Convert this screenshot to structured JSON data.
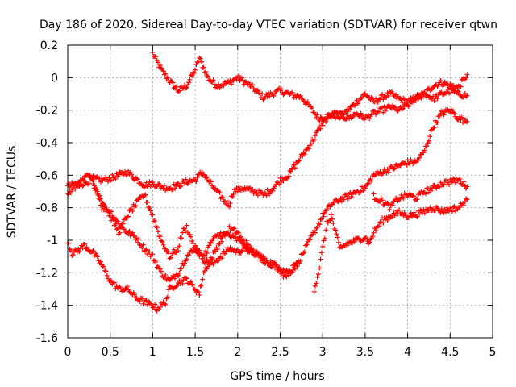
{
  "chart_data": {
    "type": "scatter",
    "title": "Day 186 of 2020, Sidereal Day-to-day VTEC variation (SDTVAR) for receiver qtwn",
    "xlabel": "GPS time / hours",
    "ylabel": "SDTVAR / TECUs",
    "xlim": [
      0,
      5
    ],
    "ylim": [
      -1.6,
      0.2
    ],
    "xticks": [
      "0",
      "0.5",
      "1",
      "1.5",
      "2",
      "2.5",
      "3",
      "3.5",
      "4",
      "4.5",
      "5"
    ],
    "yticks": [
      "0.2",
      "0",
      "-0.2",
      "-0.4",
      "-0.6",
      "-0.8",
      "-1",
      "-1.2",
      "-1.4",
      "-1.6"
    ],
    "grid": true,
    "marker": "+",
    "color": "#ff0000",
    "series": [
      {
        "points": [
          [
            1.0,
            0.15
          ],
          [
            1.1,
            0.05
          ],
          [
            1.2,
            -0.02
          ],
          [
            1.3,
            -0.08
          ],
          [
            1.4,
            -0.05
          ],
          [
            1.5,
            0.05
          ],
          [
            1.55,
            0.12
          ],
          [
            1.65,
            0.0
          ],
          [
            1.75,
            -0.05
          ],
          [
            1.9,
            -0.03
          ],
          [
            2.0,
            0.0
          ],
          [
            2.15,
            -0.05
          ],
          [
            2.3,
            -0.12
          ],
          [
            2.4,
            -0.1
          ],
          [
            2.5,
            -0.08
          ],
          [
            2.6,
            -0.1
          ],
          [
            2.75,
            -0.12
          ],
          [
            2.85,
            -0.18
          ],
          [
            2.95,
            -0.25
          ],
          [
            3.1,
            -0.23
          ],
          [
            3.2,
            -0.24
          ],
          [
            3.3,
            -0.2
          ],
          [
            3.4,
            -0.15
          ],
          [
            3.5,
            -0.1
          ],
          [
            3.6,
            -0.15
          ],
          [
            3.7,
            -0.12
          ],
          [
            3.8,
            -0.1
          ],
          [
            3.9,
            -0.13
          ],
          [
            4.0,
            -0.15
          ],
          [
            4.1,
            -0.12
          ],
          [
            4.2,
            -0.1
          ],
          [
            4.3,
            -0.05
          ],
          [
            4.4,
            -0.03
          ],
          [
            4.5,
            -0.05
          ],
          [
            4.6,
            -0.06
          ],
          [
            4.7,
            0.02
          ]
        ]
      },
      {
        "points": [
          [
            0.0,
            -0.67
          ],
          [
            0.1,
            -0.65
          ],
          [
            0.2,
            -0.65
          ],
          [
            0.3,
            -0.62
          ],
          [
            0.4,
            -0.63
          ],
          [
            0.5,
            -0.62
          ],
          [
            0.6,
            -0.6
          ],
          [
            0.7,
            -0.58
          ],
          [
            0.8,
            -0.62
          ],
          [
            0.9,
            -0.66
          ],
          [
            1.0,
            -0.65
          ],
          [
            1.1,
            -0.67
          ],
          [
            1.2,
            -0.68
          ],
          [
            1.3,
            -0.66
          ],
          [
            1.4,
            -0.64
          ],
          [
            1.5,
            -0.63
          ],
          [
            1.58,
            -0.58
          ],
          [
            1.65,
            -0.63
          ],
          [
            1.75,
            -0.7
          ],
          [
            1.85,
            -0.76
          ],
          [
            1.9,
            -0.78
          ],
          [
            1.95,
            -0.7
          ],
          [
            2.05,
            -0.68
          ],
          [
            2.2,
            -0.7
          ],
          [
            2.3,
            -0.72
          ],
          [
            2.4,
            -0.69
          ],
          [
            2.5,
            -0.63
          ],
          [
            2.6,
            -0.6
          ],
          [
            2.7,
            -0.52
          ],
          [
            2.8,
            -0.45
          ],
          [
            2.9,
            -0.37
          ],
          [
            3.0,
            -0.28
          ],
          [
            3.05,
            -0.25
          ],
          [
            3.15,
            -0.22
          ],
          [
            3.3,
            -0.25
          ],
          [
            3.4,
            -0.22
          ],
          [
            3.5,
            -0.25
          ],
          [
            3.6,
            -0.22
          ],
          [
            3.7,
            -0.2
          ],
          [
            3.8,
            -0.18
          ],
          [
            3.9,
            -0.2
          ],
          [
            4.0,
            -0.17
          ],
          [
            4.1,
            -0.13
          ],
          [
            4.2,
            -0.1
          ],
          [
            4.3,
            -0.13
          ],
          [
            4.4,
            -0.1
          ],
          [
            4.5,
            -0.08
          ],
          [
            4.6,
            -0.1
          ],
          [
            4.7,
            -0.11
          ]
        ]
      },
      {
        "points": [
          [
            0.0,
            -0.72
          ],
          [
            0.1,
            -0.67
          ],
          [
            0.2,
            -0.62
          ],
          [
            0.25,
            -0.6
          ],
          [
            0.35,
            -0.7
          ],
          [
            0.4,
            -0.8
          ],
          [
            0.5,
            -0.82
          ],
          [
            0.6,
            -0.9
          ],
          [
            0.7,
            -0.95
          ],
          [
            0.8,
            -0.98
          ],
          [
            0.9,
            -1.05
          ],
          [
            1.0,
            -1.1
          ],
          [
            1.1,
            -1.2
          ],
          [
            1.2,
            -1.25
          ],
          [
            1.3,
            -1.2
          ],
          [
            1.4,
            -1.1
          ],
          [
            1.5,
            -1.05
          ],
          [
            1.6,
            -1.12
          ],
          [
            1.7,
            -1.15
          ],
          [
            1.8,
            -1.1
          ],
          [
            1.9,
            -1.05
          ],
          [
            2.0,
            -1.07
          ],
          [
            2.1,
            -1.05
          ],
          [
            2.2,
            -1.08
          ],
          [
            2.3,
            -1.12
          ],
          [
            2.4,
            -1.14
          ],
          [
            2.5,
            -1.17
          ],
          [
            2.6,
            -1.2
          ],
          [
            2.7,
            -1.15
          ],
          [
            2.8,
            -1.05
          ],
          [
            2.9,
            -0.95
          ],
          [
            3.0,
            -0.85
          ],
          [
            3.1,
            -0.78
          ],
          [
            3.2,
            -0.75
          ],
          [
            3.3,
            -0.73
          ],
          [
            3.4,
            -0.7
          ],
          [
            3.5,
            -0.68
          ],
          [
            3.6,
            -0.6
          ],
          [
            3.7,
            -0.58
          ],
          [
            3.8,
            -0.56
          ],
          [
            3.9,
            -0.54
          ],
          [
            4.0,
            -0.52
          ],
          [
            4.1,
            -0.52
          ],
          [
            4.2,
            -0.45
          ],
          [
            4.3,
            -0.3
          ],
          [
            4.4,
            -0.22
          ],
          [
            4.5,
            -0.2
          ],
          [
            4.6,
            -0.25
          ],
          [
            4.7,
            -0.27
          ]
        ]
      },
      {
        "points": [
          [
            0.0,
            -1.0
          ],
          [
            0.05,
            -1.08
          ],
          [
            0.1,
            -1.07
          ],
          [
            0.2,
            -1.03
          ],
          [
            0.3,
            -1.08
          ],
          [
            0.4,
            -1.15
          ],
          [
            0.5,
            -1.25
          ],
          [
            0.6,
            -1.3
          ],
          [
            0.7,
            -1.3
          ],
          [
            0.8,
            -1.35
          ],
          [
            0.9,
            -1.38
          ],
          [
            1.0,
            -1.4
          ],
          [
            1.05,
            -1.42
          ],
          [
            1.15,
            -1.38
          ],
          [
            1.2,
            -1.3
          ],
          [
            1.3,
            -1.26
          ],
          [
            1.4,
            -1.24
          ],
          [
            1.5,
            -1.3
          ],
          [
            1.55,
            -1.33
          ],
          [
            1.6,
            -1.2
          ],
          [
            1.7,
            -1.1
          ],
          [
            1.8,
            -1.0
          ],
          [
            1.9,
            -0.93
          ],
          [
            2.0,
            -0.95
          ],
          [
            2.1,
            -1.05
          ],
          [
            2.2,
            -1.08
          ],
          [
            2.3,
            -1.12
          ],
          [
            2.4,
            -1.15
          ],
          [
            2.5,
            -1.18
          ],
          [
            2.55,
            -1.22
          ],
          [
            2.6,
            -1.2
          ],
          [
            2.7,
            -1.14
          ]
        ]
      },
      {
        "points": [
          [
            0.3,
            -0.65
          ],
          [
            0.4,
            -0.75
          ],
          [
            0.5,
            -0.85
          ],
          [
            0.6,
            -0.95
          ],
          [
            0.7,
            -0.85
          ],
          [
            0.8,
            -0.78
          ],
          [
            0.9,
            -0.72
          ],
          [
            1.0,
            -0.85
          ],
          [
            1.1,
            -1.0
          ],
          [
            1.2,
            -1.1
          ],
          [
            1.3,
            -1.05
          ],
          [
            1.35,
            -0.95
          ],
          [
            1.4,
            -0.92
          ],
          [
            1.5,
            -1.05
          ],
          [
            1.6,
            -1.1
          ],
          [
            1.7,
            -1.0
          ],
          [
            1.8,
            -0.96
          ],
          [
            1.9,
            -0.97
          ],
          [
            2.0,
            -1.0
          ],
          [
            2.1,
            -1.02
          ],
          [
            2.2,
            -1.08
          ],
          [
            2.3,
            -1.1
          ]
        ]
      },
      {
        "points": [
          [
            2.9,
            -1.3
          ],
          [
            2.95,
            -1.2
          ],
          [
            3.0,
            -1.05
          ],
          [
            3.05,
            -0.9
          ],
          [
            3.1,
            -0.85
          ],
          [
            3.15,
            -0.95
          ],
          [
            3.2,
            -1.05
          ],
          [
            3.3,
            -1.02
          ],
          [
            3.4,
            -1.0
          ],
          [
            3.5,
            -0.98
          ],
          [
            3.55,
            -1.02
          ],
          [
            3.6,
            -0.95
          ],
          [
            3.7,
            -0.88
          ],
          [
            3.8,
            -0.85
          ],
          [
            3.9,
            -0.83
          ],
          [
            4.0,
            -0.85
          ],
          [
            4.1,
            -0.84
          ],
          [
            4.2,
            -0.82
          ],
          [
            4.3,
            -0.8
          ],
          [
            4.4,
            -0.82
          ],
          [
            4.5,
            -0.81
          ],
          [
            4.6,
            -0.8
          ],
          [
            4.7,
            -0.75
          ]
        ]
      },
      {
        "points": [
          [
            3.6,
            -0.73
          ],
          [
            3.7,
            -0.76
          ],
          [
            3.8,
            -0.8
          ],
          [
            3.85,
            -0.76
          ],
          [
            3.9,
            -0.74
          ],
          [
            4.0,
            -0.72
          ],
          [
            4.1,
            -0.74
          ],
          [
            4.2,
            -0.7
          ],
          [
            4.3,
            -0.68
          ],
          [
            4.4,
            -0.65
          ],
          [
            4.5,
            -0.64
          ],
          [
            4.6,
            -0.63
          ],
          [
            4.7,
            -0.67
          ]
        ]
      }
    ]
  }
}
